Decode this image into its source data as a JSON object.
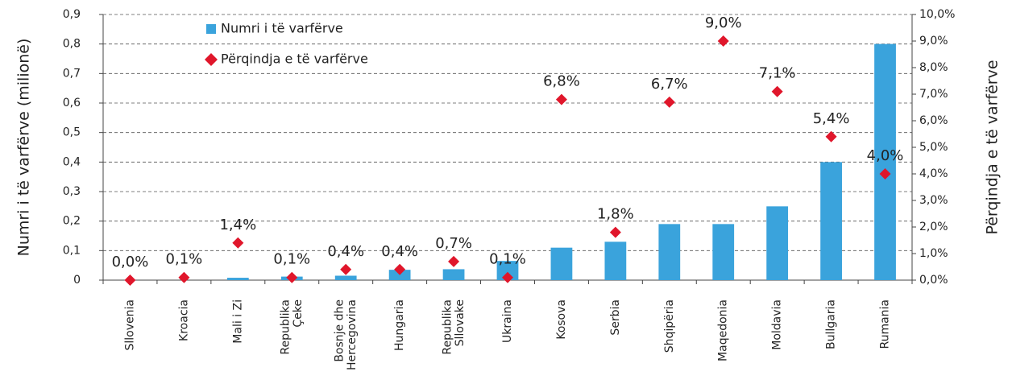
{
  "chart_data": {
    "type": "bar",
    "categories": [
      "Sllovenia",
      "Kroacia",
      "Mali i Zi",
      "Republika\nÇeke",
      "Bosnje dhe\nHercegovina",
      "Hungaria",
      "Republika\nSllovake",
      "Ukraina",
      "Kosova",
      "Serbia",
      "Shqipëria",
      "Maqedonia",
      "Moldavia",
      "Bullgaria",
      "Rumania"
    ],
    "series": [
      {
        "name": "Numri i të varfërve",
        "type": "bar",
        "color": "#3aa3dc",
        "values": [
          0,
          0,
          0.008,
          0.012,
          0.015,
          0.035,
          0.037,
          0.065,
          0.11,
          0.13,
          0.19,
          0.19,
          0.25,
          0.4,
          0.8
        ]
      },
      {
        "name": "Përqindja e të varfërve",
        "type": "scatter",
        "axis": "y2",
        "color": "#e0162b",
        "values": [
          0.0,
          0.1,
          1.4,
          0.1,
          0.4,
          0.4,
          0.7,
          0.1,
          6.8,
          1.8,
          6.7,
          9.0,
          7.1,
          5.4,
          4.0
        ],
        "value_labels": [
          "0,0%",
          "0,1%",
          "1,4%",
          "0,1%",
          "0,4%",
          "0,4%",
          "0,7%",
          "0,1%",
          "6,8%",
          "1,8%",
          "6,7%",
          "9,0%",
          "7,1%",
          "5,4%",
          "4,0%"
        ]
      }
    ],
    "ylabel": "Numri i të varfërve (milionë)",
    "y2label": "Përqindja e të varfërve",
    "ylim": [
      0,
      0.9
    ],
    "yticks": [
      0,
      {
        "value": 0.1,
        "label": "0,1"
      },
      {
        "value": 0.2,
        "label": "0,2"
      },
      {
        "value": 0.3,
        "label": "0,3"
      },
      {
        "value": 0.4,
        "label": "0,4"
      },
      {
        "value": 0.5,
        "label": "0,5"
      },
      {
        "value": 0.6,
        "label": "0,6"
      },
      {
        "value": 0.7,
        "label": "0,7"
      },
      {
        "value": 0.8,
        "label": "0,8"
      },
      {
        "value": 0.9,
        "label": "0,9"
      }
    ],
    "y2lim": [
      0,
      10
    ],
    "y2ticks": [
      {
        "value": 0,
        "label": "0,0%"
      },
      {
        "value": 1,
        "label": "1,0%"
      },
      {
        "value": 2,
        "label": "2,0%"
      },
      {
        "value": 3,
        "label": "3,0%"
      },
      {
        "value": 4,
        "label": "4,0%"
      },
      {
        "value": 5,
        "label": "5,0%"
      },
      {
        "value": 6,
        "label": "6,0%"
      },
      {
        "value": 7,
        "label": "7,0%"
      },
      {
        "value": 8,
        "label": "8,0%"
      },
      {
        "value": 9,
        "label": "9,0%"
      },
      {
        "value": 10,
        "label": "10,0%"
      }
    ],
    "grid": true,
    "legend": "upper left"
  }
}
